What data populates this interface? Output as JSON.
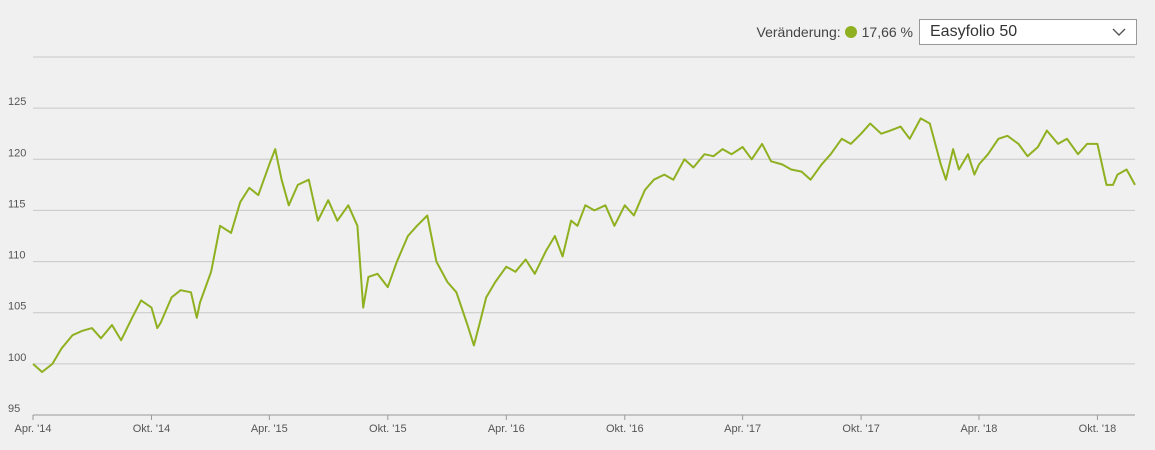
{
  "header": {
    "change_label": "Veränderung:",
    "change_value": "17,66 %",
    "change_color": "#8fb020"
  },
  "portfolio_select": {
    "selected": "Easyfolio 50",
    "icon": "chevron-down-icon"
  },
  "chart_data": {
    "type": "line",
    "title": "",
    "xlabel": "",
    "ylabel": "",
    "ylim": [
      95,
      130
    ],
    "yticks": [
      95,
      100,
      105,
      110,
      115,
      120,
      125
    ],
    "xticks": [
      "Apr. '14",
      "Okt. '14",
      "Apr. '15",
      "Okt. '15",
      "Apr. '16",
      "Okt. '16",
      "Apr. '17",
      "Okt. '17",
      "Apr. '18",
      "Okt. '18"
    ],
    "grid": true,
    "line_color": "#8fb020",
    "series": [
      {
        "x": [
          "2014-04-01",
          "2014-04-15",
          "2014-05-01",
          "2014-05-15",
          "2014-06-01",
          "2014-06-15",
          "2014-07-01",
          "2014-07-15",
          "2014-08-01",
          "2014-08-15",
          "2014-09-01",
          "2014-09-15",
          "2014-10-01",
          "2014-10-10",
          "2014-10-15",
          "2014-11-01",
          "2014-11-15",
          "2014-12-01",
          "2014-12-10",
          "2014-12-15",
          "2015-01-01",
          "2015-01-15",
          "2015-02-01",
          "2015-02-15",
          "2015-03-01",
          "2015-03-15",
          "2015-04-01",
          "2015-04-10",
          "2015-04-20",
          "2015-05-01",
          "2015-05-15",
          "2015-06-01",
          "2015-06-15",
          "2015-07-01",
          "2015-07-15",
          "2015-08-01",
          "2015-08-15",
          "2015-08-24",
          "2015-09-01",
          "2015-09-15",
          "2015-10-01",
          "2015-10-15",
          "2015-11-01",
          "2015-11-15",
          "2015-12-01",
          "2015-12-15",
          "2016-01-01",
          "2016-01-15",
          "2016-02-01",
          "2016-02-11",
          "2016-02-20",
          "2016-03-01",
          "2016-03-15",
          "2016-04-01",
          "2016-04-15",
          "2016-05-01",
          "2016-05-15",
          "2016-06-01",
          "2016-06-15",
          "2016-06-27",
          "2016-07-10",
          "2016-07-20",
          "2016-08-01",
          "2016-08-15",
          "2016-09-01",
          "2016-09-15",
          "2016-10-01",
          "2016-10-15",
          "2016-11-01",
          "2016-11-15",
          "2016-12-01",
          "2016-12-15",
          "2017-01-01",
          "2017-01-15",
          "2017-02-01",
          "2017-02-15",
          "2017-03-01",
          "2017-03-15",
          "2017-04-01",
          "2017-04-15",
          "2017-05-01",
          "2017-05-15",
          "2017-06-01",
          "2017-06-15",
          "2017-07-01",
          "2017-07-15",
          "2017-08-01",
          "2017-08-15",
          "2017-09-01",
          "2017-09-15",
          "2017-10-01",
          "2017-10-15",
          "2017-11-01",
          "2017-11-15",
          "2017-12-01",
          "2017-12-15",
          "2018-01-01",
          "2018-01-15",
          "2018-02-01",
          "2018-02-09",
          "2018-02-20",
          "2018-03-01",
          "2018-03-15",
          "2018-03-25",
          "2018-04-01",
          "2018-04-15",
          "2018-05-01",
          "2018-05-15",
          "2018-06-01",
          "2018-06-15",
          "2018-07-01",
          "2018-07-15",
          "2018-08-01",
          "2018-08-15",
          "2018-09-01",
          "2018-09-15",
          "2018-10-01",
          "2018-10-15",
          "2018-10-25",
          "2018-11-01",
          "2018-11-15",
          "2018-11-28"
        ],
        "y": [
          100.0,
          99.2,
          100.0,
          101.5,
          102.8,
          103.2,
          103.5,
          102.5,
          103.8,
          102.3,
          104.5,
          106.2,
          105.5,
          103.5,
          104.0,
          106.5,
          107.2,
          107.0,
          104.5,
          106.0,
          109.0,
          113.5,
          112.8,
          115.8,
          117.2,
          116.5,
          119.5,
          121.0,
          118.0,
          115.5,
          117.5,
          118.0,
          114.0,
          116.0,
          114.0,
          115.5,
          113.5,
          105.5,
          108.5,
          108.8,
          107.5,
          110.0,
          112.5,
          113.5,
          114.5,
          110.0,
          108.0,
          107.0,
          103.8,
          101.8,
          104.0,
          106.5,
          108.0,
          109.5,
          109.0,
          110.2,
          108.8,
          111.0,
          112.5,
          110.5,
          114.0,
          113.5,
          115.5,
          115.0,
          115.5,
          113.5,
          115.5,
          114.5,
          117.0,
          118.0,
          118.5,
          118.0,
          120.0,
          119.2,
          120.5,
          120.3,
          121.0,
          120.5,
          121.2,
          120.0,
          121.5,
          119.8,
          119.5,
          119.0,
          118.8,
          118.0,
          119.5,
          120.5,
          122.0,
          121.5,
          122.5,
          123.5,
          122.5,
          122.8,
          123.2,
          122.0,
          124.0,
          123.5,
          119.5,
          118.0,
          121.0,
          119.0,
          120.5,
          118.5,
          119.5,
          120.5,
          122.0,
          122.3,
          121.5,
          120.3,
          121.2,
          122.8,
          121.5,
          122.0,
          120.5,
          121.5,
          121.5,
          117.5,
          117.5,
          118.5,
          119.0,
          117.5
        ]
      }
    ]
  }
}
